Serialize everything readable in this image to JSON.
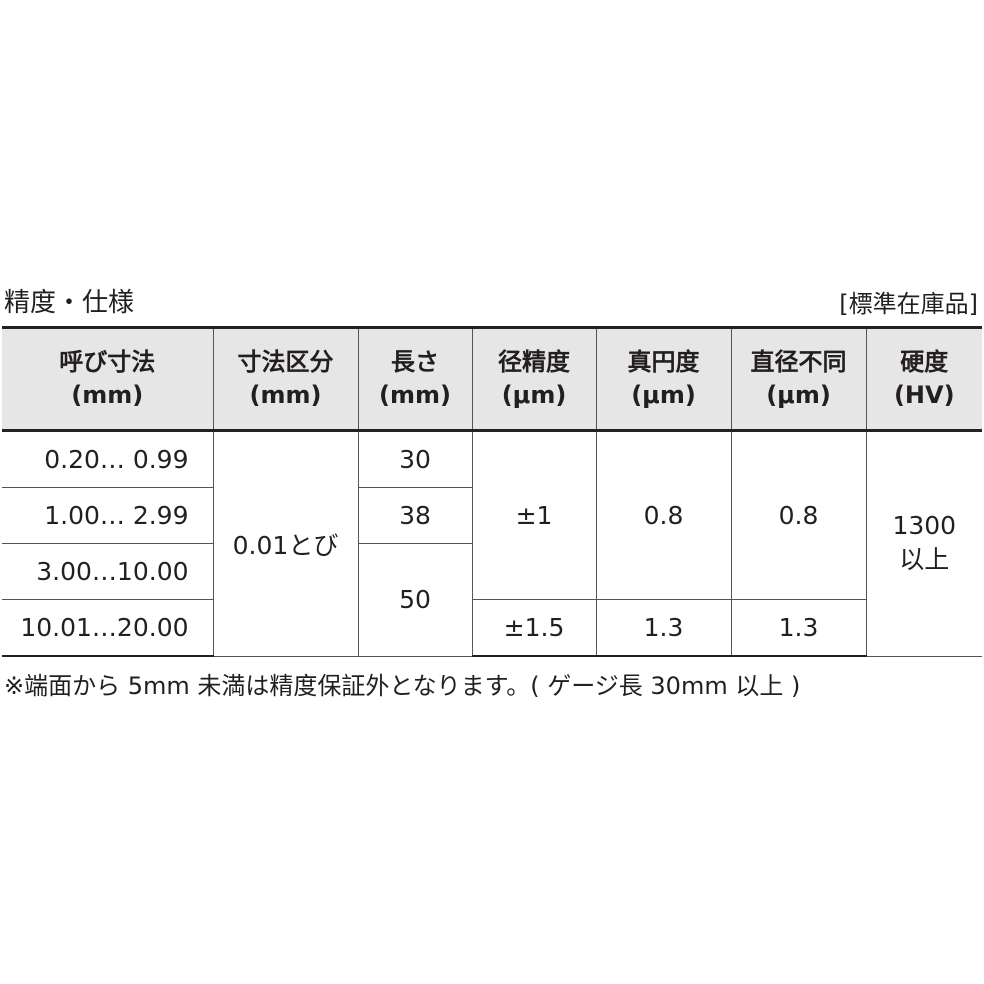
{
  "title": "精度・仕様",
  "stock_label": "[標準在庫品]",
  "table": {
    "headers": [
      {
        "l1": "呼び寸法",
        "l2": "(mm)"
      },
      {
        "l1": "寸法区分",
        "l2": "(mm)"
      },
      {
        "l1": "長さ",
        "l2": "(mm)"
      },
      {
        "l1": "径精度",
        "l2": "(μm)"
      },
      {
        "l1": "真円度",
        "l2": "(μm)"
      },
      {
        "l1": "直径不同",
        "l2": "(μm)"
      },
      {
        "l1": "硬度",
        "l2": "(HV)"
      }
    ],
    "nominal": [
      "0.20… 0.99",
      "1.00… 2.99",
      "3.00…10.00",
      "10.01…20.00"
    ],
    "division": "0.01とび",
    "length": [
      "30",
      "38",
      "50"
    ],
    "diameter_accuracy": [
      "±1",
      "±1.5"
    ],
    "roundness": [
      "0.8",
      "1.3"
    ],
    "diameter_variation": [
      "0.8",
      "1.3"
    ],
    "hardness": {
      "l1": "1300",
      "l2": "以上"
    }
  },
  "note": "※端面から 5mm 未満は精度保証外となります。( ゲージ長 30mm 以上 )"
}
